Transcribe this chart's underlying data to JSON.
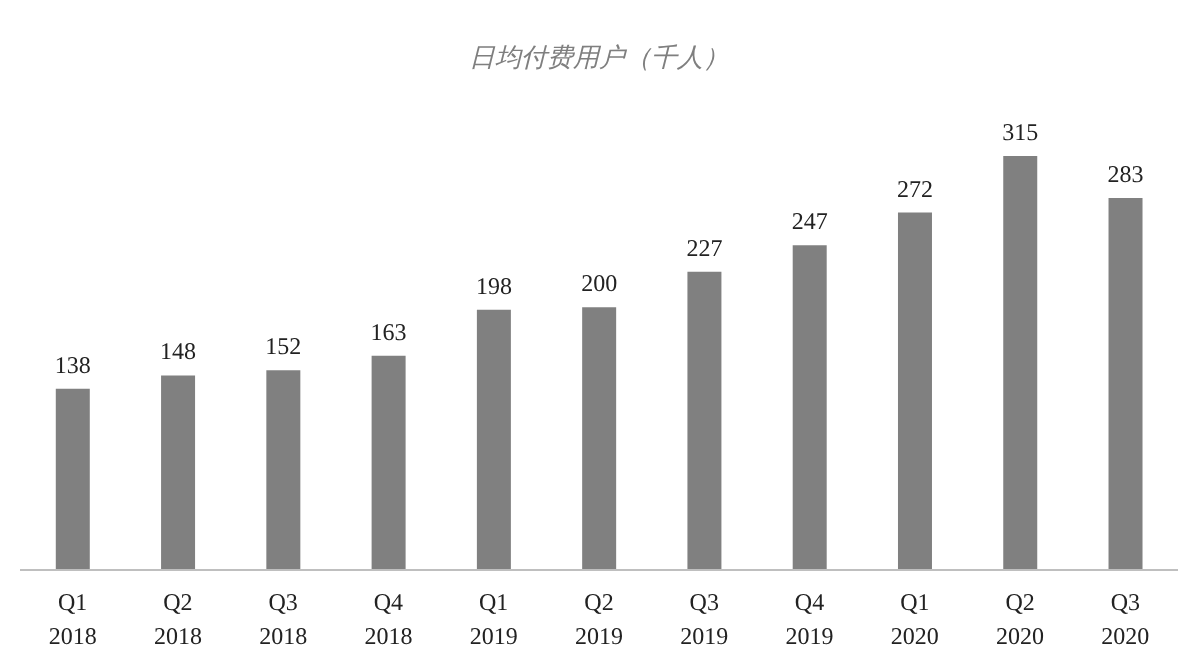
{
  "chart_data": {
    "type": "bar",
    "title": "日均付费用户（千人）",
    "categories": [
      "Q1\n2018",
      "Q2\n2018",
      "Q3\n2018",
      "Q4\n2018",
      "Q1\n2019",
      "Q2\n2019",
      "Q3\n2019",
      "Q4\n2019",
      "Q1\n2020",
      "Q2\n2020",
      "Q3\n2020"
    ],
    "values": [
      138,
      148,
      152,
      163,
      198,
      200,
      227,
      247,
      272,
      315,
      283
    ],
    "color": "#808080",
    "data_labels": true,
    "grid": false,
    "legend": false,
    "tick_labels": "x"
  }
}
